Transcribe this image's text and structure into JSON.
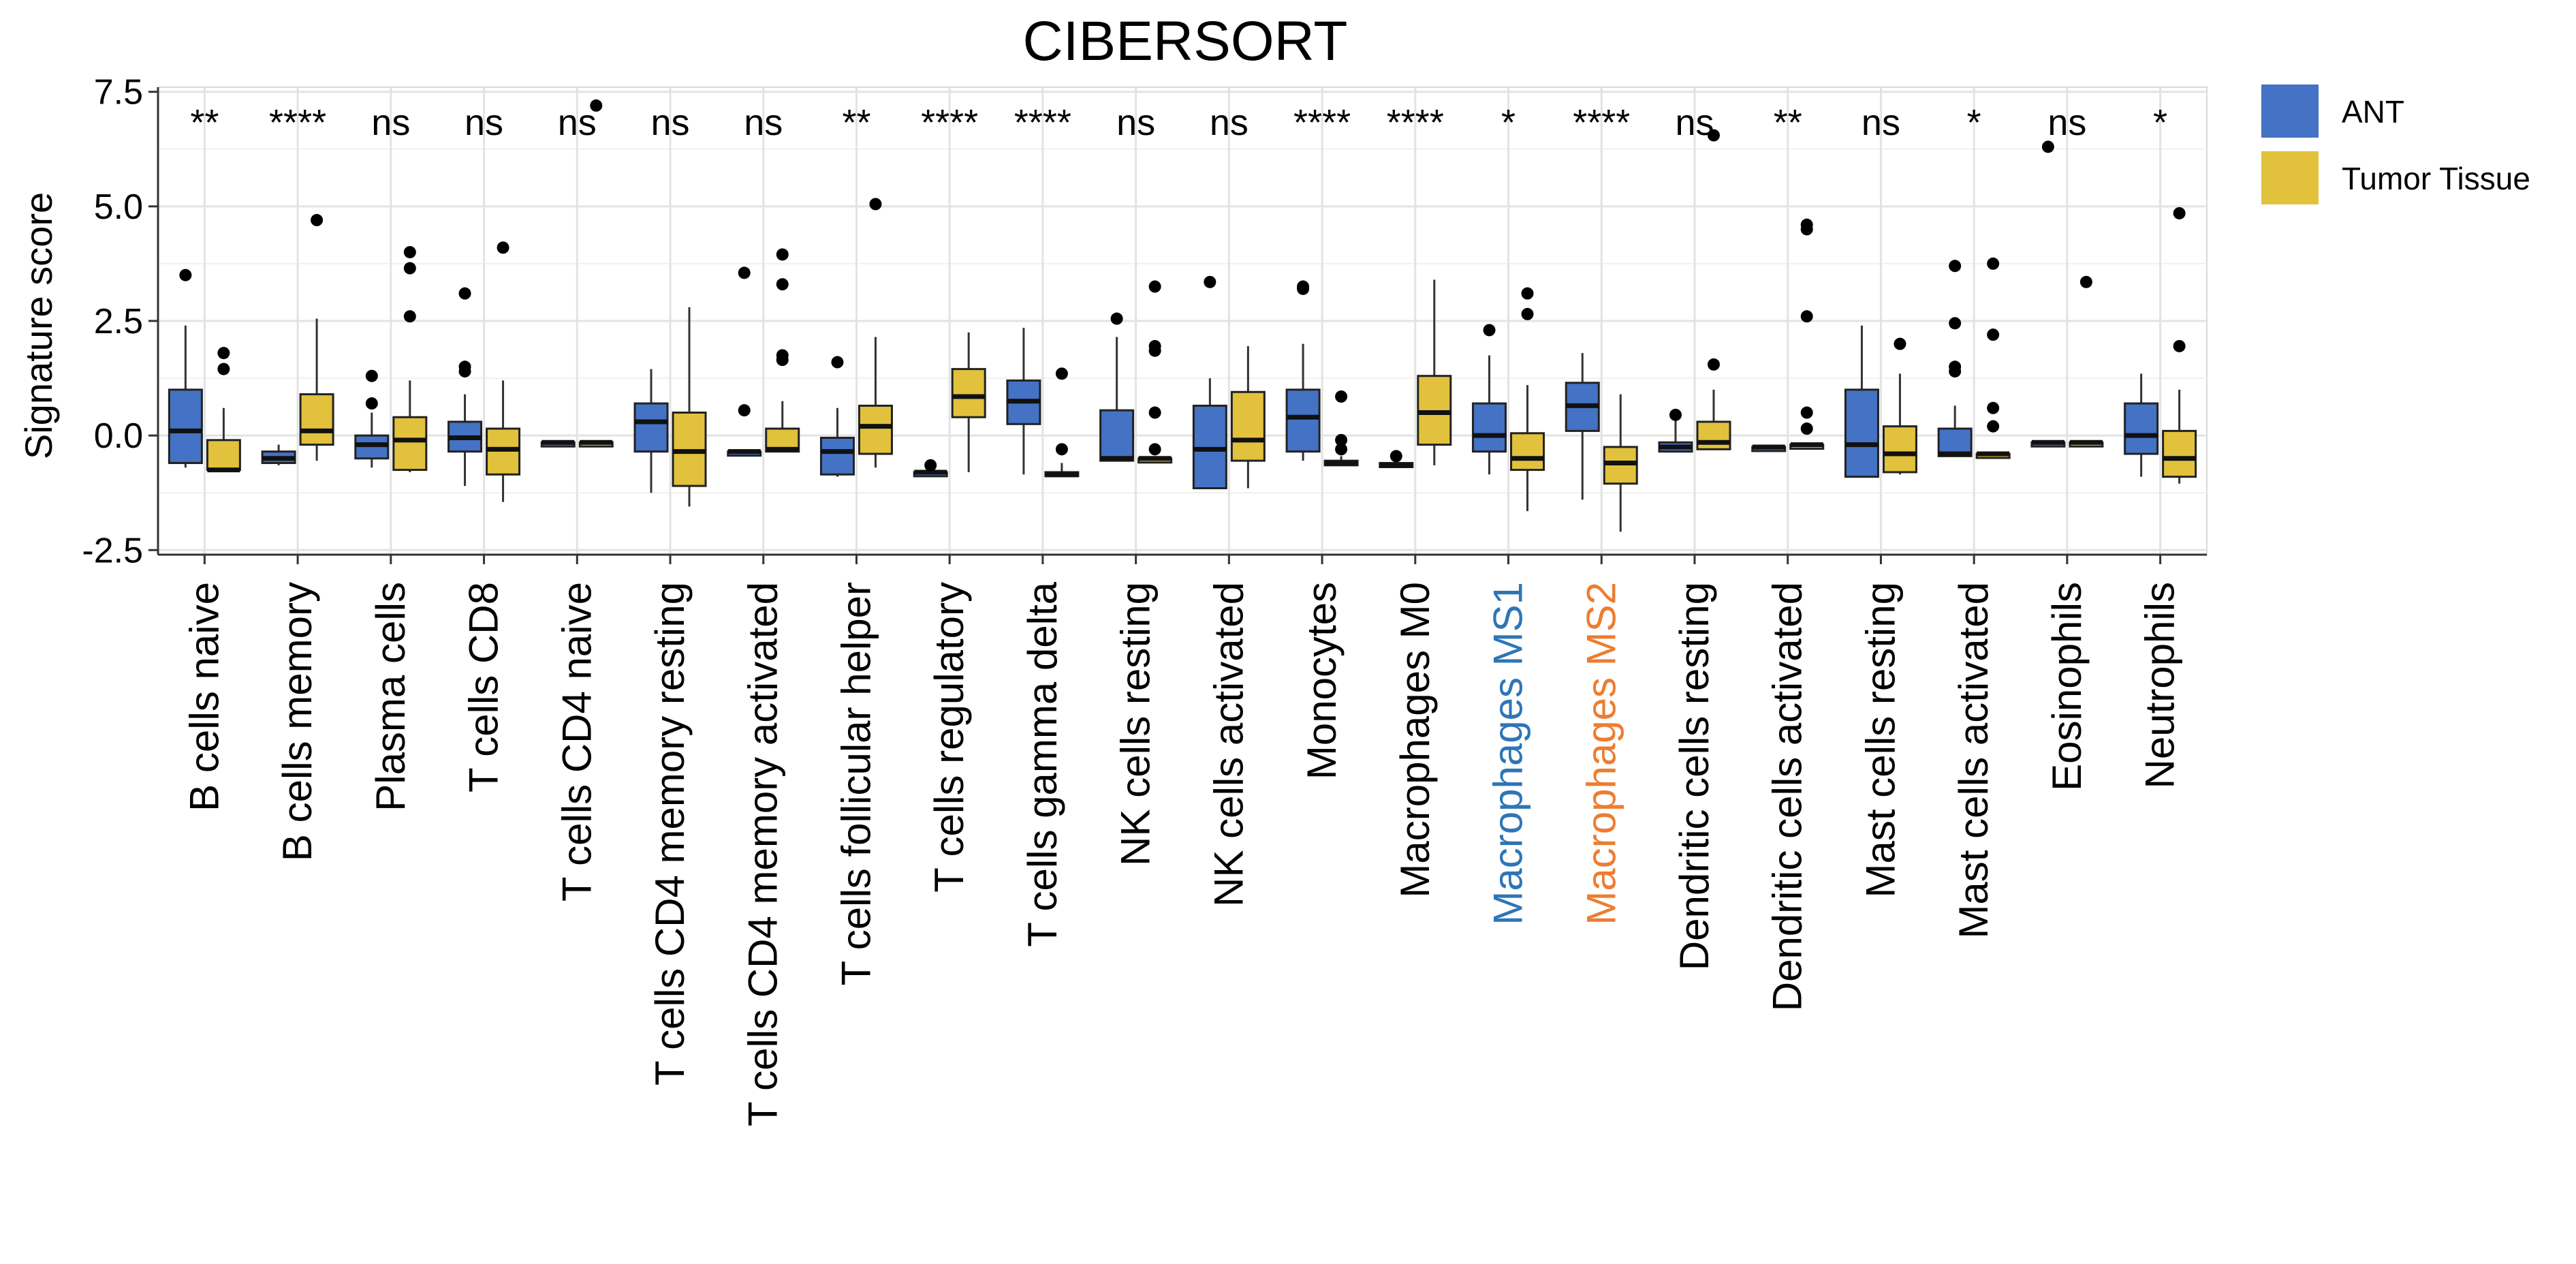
{
  "chart_data": {
    "type": "boxplot",
    "title": "CIBERSORT",
    "xlabel": "",
    "ylabel": "Signature score",
    "ylim": [
      -2.6,
      7.6
    ],
    "yticks": [
      "-2.5",
      "0.0",
      "2.5",
      "5.0",
      "7.5"
    ],
    "ytick_values": [
      -2.5,
      0.0,
      2.5,
      5.0,
      7.5
    ],
    "grid": true,
    "legend": {
      "position": "top-right",
      "entries": [
        {
          "name": "ANT",
          "color": "#4472c4"
        },
        {
          "name": "Tumor Tissue",
          "color": "#e2c23c"
        }
      ]
    },
    "categories": [
      {
        "label": "B cells naive",
        "sig": "**",
        "color": "#000000"
      },
      {
        "label": "B cells memory",
        "sig": "****",
        "color": "#000000"
      },
      {
        "label": "Plasma cells",
        "sig": "ns",
        "color": "#000000"
      },
      {
        "label": "T cells CD8",
        "sig": "ns",
        "color": "#000000"
      },
      {
        "label": "T cells CD4 naive",
        "sig": "ns",
        "color": "#000000"
      },
      {
        "label": "T cells CD4 memory resting",
        "sig": "ns",
        "color": "#000000"
      },
      {
        "label": "T cells CD4 memory activated",
        "sig": "ns",
        "color": "#000000"
      },
      {
        "label": "T cells follicular helper",
        "sig": "**",
        "color": "#000000"
      },
      {
        "label": "T cells regulatory",
        "sig": "****",
        "color": "#000000"
      },
      {
        "label": "T cells gamma delta",
        "sig": "****",
        "color": "#000000"
      },
      {
        "label": "NK cells resting",
        "sig": "ns",
        "color": "#000000"
      },
      {
        "label": "NK cells activated",
        "sig": "ns",
        "color": "#000000"
      },
      {
        "label": "Monocytes",
        "sig": "****",
        "color": "#000000"
      },
      {
        "label": "Macrophages M0",
        "sig": "****",
        "color": "#000000"
      },
      {
        "label": "Macrophages MS1",
        "sig": "*",
        "color": "#2e75b6"
      },
      {
        "label": "Macrophages MS2",
        "sig": "****",
        "color": "#ed7d31"
      },
      {
        "label": "Dendritic cells resting",
        "sig": "ns",
        "color": "#000000"
      },
      {
        "label": "Dendritic cells activated",
        "sig": "**",
        "color": "#000000"
      },
      {
        "label": "Mast cells resting",
        "sig": "ns",
        "color": "#000000"
      },
      {
        "label": "Mast cells activated",
        "sig": "*",
        "color": "#000000"
      },
      {
        "label": "Eosinophils",
        "sig": "ns",
        "color": "#000000"
      },
      {
        "label": "Neutrophils",
        "sig": "*",
        "color": "#000000"
      }
    ],
    "series": [
      {
        "name": "ANT",
        "color": "#4472c4",
        "boxes": [
          {
            "lo": -0.7,
            "q1": -0.6,
            "med": 0.1,
            "q3": 1.0,
            "hi": 2.4,
            "out": [
              3.5
            ]
          },
          {
            "lo": -0.65,
            "q1": -0.6,
            "med": -0.5,
            "q3": -0.35,
            "hi": -0.2,
            "out": []
          },
          {
            "lo": -0.7,
            "q1": -0.5,
            "med": -0.2,
            "q3": 0.0,
            "hi": 0.5,
            "out": [
              0.7,
              1.3
            ]
          },
          {
            "lo": -1.1,
            "q1": -0.35,
            "med": -0.05,
            "q3": 0.3,
            "hi": 0.9,
            "out": [
              1.4,
              1.5,
              3.1
            ]
          },
          {
            "lo": -0.15,
            "q1": -0.15,
            "med": -0.15,
            "q3": -0.15,
            "hi": -0.15,
            "out": []
          },
          {
            "lo": -1.25,
            "q1": -0.35,
            "med": 0.3,
            "q3": 0.7,
            "hi": 1.45,
            "out": []
          },
          {
            "lo": -0.35,
            "q1": -0.35,
            "med": -0.35,
            "q3": -0.35,
            "hi": -0.35,
            "out": [
              0.55,
              3.55
            ]
          },
          {
            "lo": -0.9,
            "q1": -0.85,
            "med": -0.35,
            "q3": -0.05,
            "hi": 0.6,
            "out": [
              1.6
            ]
          },
          {
            "lo": -0.8,
            "q1": -0.8,
            "med": -0.8,
            "q3": -0.8,
            "hi": -0.8,
            "out": [
              -0.65
            ]
          },
          {
            "lo": -0.85,
            "q1": 0.25,
            "med": 0.75,
            "q3": 1.2,
            "hi": 2.35,
            "out": []
          },
          {
            "lo": -0.55,
            "q1": -0.55,
            "med": -0.5,
            "q3": 0.55,
            "hi": 2.15,
            "out": [
              2.55
            ]
          },
          {
            "lo": -1.15,
            "q1": -1.15,
            "med": -0.3,
            "q3": 0.65,
            "hi": 1.25,
            "out": [
              3.35
            ]
          },
          {
            "lo": -0.55,
            "q1": -0.35,
            "med": 0.4,
            "q3": 1.0,
            "hi": 2.0,
            "out": [
              3.2,
              3.25
            ]
          },
          {
            "lo": -0.65,
            "q1": -0.65,
            "med": -0.65,
            "q3": -0.6,
            "hi": -0.6,
            "out": [
              -0.45
            ]
          },
          {
            "lo": -0.85,
            "q1": -0.35,
            "med": 0.0,
            "q3": 0.7,
            "hi": 1.75,
            "out": [
              2.3
            ]
          },
          {
            "lo": -1.4,
            "q1": 0.1,
            "med": 0.65,
            "q3": 1.15,
            "hi": 1.8,
            "out": []
          },
          {
            "lo": -0.35,
            "q1": -0.35,
            "med": -0.25,
            "q3": -0.15,
            "hi": 0.35,
            "out": [
              0.45
            ]
          },
          {
            "lo": -0.25,
            "q1": -0.25,
            "med": -0.25,
            "q3": -0.25,
            "hi": -0.25,
            "out": []
          },
          {
            "lo": -0.9,
            "q1": -0.9,
            "med": -0.2,
            "q3": 1.0,
            "hi": 2.4,
            "out": []
          },
          {
            "lo": -0.45,
            "q1": -0.45,
            "med": -0.4,
            "q3": 0.15,
            "hi": 0.65,
            "out": [
              1.4,
              1.5,
              2.45,
              3.7
            ]
          },
          {
            "lo": -0.15,
            "q1": -0.15,
            "med": -0.15,
            "q3": -0.15,
            "hi": -0.15,
            "out": [
              6.3
            ]
          },
          {
            "lo": -0.9,
            "q1": -0.4,
            "med": 0.0,
            "q3": 0.7,
            "hi": 1.35,
            "out": []
          }
        ]
      },
      {
        "name": "Tumor Tissue",
        "color": "#e2c23c",
        "boxes": [
          {
            "lo": -0.8,
            "q1": -0.75,
            "med": -0.75,
            "q3": -0.1,
            "hi": 0.6,
            "out": [
              1.45,
              1.8
            ]
          },
          {
            "lo": -0.55,
            "q1": -0.2,
            "med": 0.1,
            "q3": 0.9,
            "hi": 2.55,
            "out": [
              4.7
            ]
          },
          {
            "lo": -0.8,
            "q1": -0.75,
            "med": -0.1,
            "q3": 0.4,
            "hi": 1.2,
            "out": [
              2.6,
              3.65,
              4.0
            ]
          },
          {
            "lo": -1.45,
            "q1": -0.85,
            "med": -0.3,
            "q3": 0.15,
            "hi": 1.2,
            "out": [
              4.1
            ]
          },
          {
            "lo": -0.15,
            "q1": -0.15,
            "med": -0.15,
            "q3": -0.15,
            "hi": -0.15,
            "out": [
              7.2
            ]
          },
          {
            "lo": -1.55,
            "q1": -1.1,
            "med": -0.35,
            "q3": 0.5,
            "hi": 2.8,
            "out": []
          },
          {
            "lo": -0.35,
            "q1": -0.35,
            "med": -0.3,
            "q3": 0.15,
            "hi": 0.75,
            "out": [
              1.65,
              1.75,
              3.3,
              3.95
            ]
          },
          {
            "lo": -0.7,
            "q1": -0.4,
            "med": 0.2,
            "q3": 0.65,
            "hi": 2.15,
            "out": [
              5.05
            ]
          },
          {
            "lo": -0.8,
            "q1": 0.4,
            "med": 0.85,
            "q3": 1.45,
            "hi": 2.25,
            "out": []
          },
          {
            "lo": -0.85,
            "q1": -0.85,
            "med": -0.85,
            "q3": -0.8,
            "hi": -0.6,
            "out": [
              -0.3,
              1.35
            ]
          },
          {
            "lo": -0.5,
            "q1": -0.5,
            "med": -0.5,
            "q3": -0.5,
            "hi": -0.5,
            "out": [
              -0.3,
              0.5,
              1.85,
              1.95,
              3.25
            ]
          },
          {
            "lo": -1.15,
            "q1": -0.55,
            "med": -0.1,
            "q3": 0.95,
            "hi": 1.95,
            "out": []
          },
          {
            "lo": -0.65,
            "q1": -0.65,
            "med": -0.6,
            "q3": -0.55,
            "hi": -0.45,
            "out": [
              -0.3,
              -0.1,
              0.85
            ]
          },
          {
            "lo": -0.65,
            "q1": -0.2,
            "med": 0.5,
            "q3": 1.3,
            "hi": 3.4,
            "out": []
          },
          {
            "lo": -1.65,
            "q1": -0.75,
            "med": -0.5,
            "q3": 0.05,
            "hi": 1.1,
            "out": [
              2.65,
              3.1
            ]
          },
          {
            "lo": -2.1,
            "q1": -1.05,
            "med": -0.6,
            "q3": -0.25,
            "hi": 0.9,
            "out": []
          },
          {
            "lo": -0.3,
            "q1": -0.3,
            "med": -0.15,
            "q3": 0.3,
            "hi": 1.0,
            "out": [
              1.55,
              6.55
            ]
          },
          {
            "lo": -0.25,
            "q1": -0.25,
            "med": -0.2,
            "q3": -0.2,
            "hi": -0.15,
            "out": [
              0.15,
              0.5,
              2.6,
              4.5,
              4.6
            ]
          },
          {
            "lo": -0.85,
            "q1": -0.8,
            "med": -0.4,
            "q3": 0.2,
            "hi": 1.35,
            "out": [
              2.0
            ]
          },
          {
            "lo": -0.4,
            "q1": -0.4,
            "med": -0.4,
            "q3": -0.4,
            "hi": -0.4,
            "out": [
              0.2,
              0.6,
              2.2,
              3.75
            ]
          },
          {
            "lo": -0.15,
            "q1": -0.15,
            "med": -0.15,
            "q3": -0.15,
            "hi": -0.15,
            "out": [
              3.35
            ]
          },
          {
            "lo": -1.05,
            "q1": -0.9,
            "med": -0.5,
            "q3": 0.1,
            "hi": 1.0,
            "out": [
              1.95,
              4.85
            ]
          }
        ]
      }
    ]
  }
}
